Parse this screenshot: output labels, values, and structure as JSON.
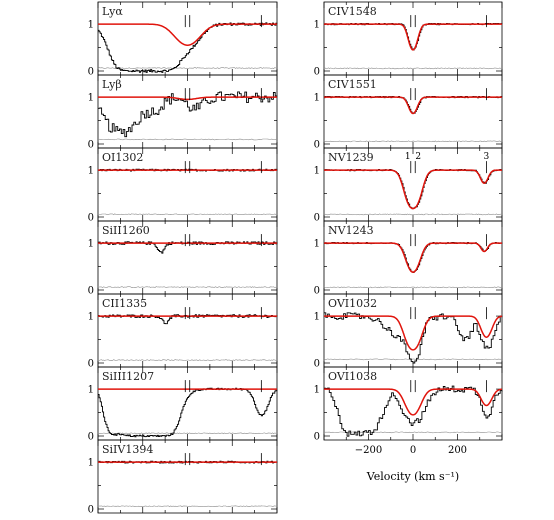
{
  "chart_data": {
    "type": "line",
    "xlabel": "Velocity (km s⁻¹)",
    "xlim": [
      -400,
      400
    ],
    "ylim": [
      0,
      1.3
    ],
    "xticks": [
      -200,
      0,
      200
    ],
    "yticks": [
      0,
      1
    ],
    "component_labels": [
      "1",
      "2",
      "3"
    ],
    "component_velocities": [
      -10,
      10,
      330
    ],
    "panels": [
      {
        "column": "left",
        "ion": "Lyα",
        "absorbers": [
          {
            "v": -190,
            "depth": 1.0,
            "width": 70
          },
          {
            "v": 0,
            "depth": 0.45,
            "width": 50
          }
        ],
        "model_absorbers": [
          {
            "v": 0,
            "depth": 0.45,
            "width": 50
          }
        ],
        "noise": 0.03
      },
      {
        "column": "left",
        "ion": "Lyβ",
        "absorbers": [
          {
            "v": -300,
            "depth": 0.75,
            "width": 60
          },
          {
            "v": -150,
            "depth": 0.25,
            "width": 35
          },
          {
            "v": 30,
            "depth": 0.25,
            "width": 35
          }
        ],
        "model_absorbers": [
          {
            "v": 0,
            "depth": 0.05,
            "width": 40
          }
        ],
        "noise": 0.12
      },
      {
        "column": "left",
        "ion": "OI1302",
        "absorbers": [],
        "model_absorbers": [],
        "noise": 0.02
      },
      {
        "column": "left",
        "ion": "SiII1260",
        "absorbers": [
          {
            "v": -120,
            "depth": 0.2,
            "width": 14
          }
        ],
        "model_absorbers": [],
        "noise": 0.03
      },
      {
        "column": "left",
        "ion": "CII1335",
        "absorbers": [
          {
            "v": -100,
            "depth": 0.15,
            "width": 14
          }
        ],
        "model_absorbers": [],
        "noise": 0.03
      },
      {
        "column": "left",
        "ion": "SiIII1207",
        "absorbers": [
          {
            "v": -330,
            "depth": 0.95,
            "width": 28
          },
          {
            "v": -175,
            "depth": 1.0,
            "width": 60
          },
          {
            "v": 330,
            "depth": 0.55,
            "width": 25
          }
        ],
        "model_absorbers": [],
        "noise": 0.02
      },
      {
        "column": "left",
        "ion": "SiIV1394",
        "absorbers": [],
        "model_absorbers": [],
        "noise": 0.02
      },
      {
        "column": "right",
        "ion": "CIV1548",
        "absorbers": [
          {
            "v": 0,
            "depth": 0.55,
            "width": 18
          }
        ],
        "model_absorbers": [
          {
            "v": 0,
            "depth": 0.55,
            "width": 18
          }
        ],
        "noise": 0.015
      },
      {
        "column": "right",
        "ion": "CIV1551",
        "absorbers": [
          {
            "v": 0,
            "depth": 0.35,
            "width": 18
          }
        ],
        "model_absorbers": [
          {
            "v": 0,
            "depth": 0.35,
            "width": 18
          }
        ],
        "noise": 0.015
      },
      {
        "column": "right",
        "ion": "NV1239",
        "absorbers": [
          {
            "v": 0,
            "depth": 0.82,
            "width": 28
          },
          {
            "v": 320,
            "depth": 0.28,
            "width": 16
          }
        ],
        "model_absorbers": [
          {
            "v": 0,
            "depth": 0.82,
            "width": 28
          },
          {
            "v": 320,
            "depth": 0.28,
            "width": 16
          }
        ],
        "noise": 0.015
      },
      {
        "column": "right",
        "ion": "NV1243",
        "absorbers": [
          {
            "v": 0,
            "depth": 0.62,
            "width": 26
          },
          {
            "v": 320,
            "depth": 0.18,
            "width": 14
          }
        ],
        "model_absorbers": [
          {
            "v": 0,
            "depth": 0.62,
            "width": 26
          },
          {
            "v": 320,
            "depth": 0.18,
            "width": 14
          }
        ],
        "noise": 0.015
      },
      {
        "column": "right",
        "ion": "OVI1032",
        "absorbers": [
          {
            "v": -50,
            "depth": 0.45,
            "width": 60
          },
          {
            "v": 0,
            "depth": 0.92,
            "width": 22
          },
          {
            "v": 230,
            "depth": 0.5,
            "width": 25
          },
          {
            "v": 330,
            "depth": 0.7,
            "width": 25
          }
        ],
        "model_absorbers": [
          {
            "v": 0,
            "depth": 0.72,
            "width": 30
          },
          {
            "v": 330,
            "depth": 0.45,
            "width": 22
          }
        ],
        "noise": 0.07
      },
      {
        "column": "right",
        "ion": "OVI1038",
        "absorbers": [
          {
            "v": -280,
            "depth": 0.95,
            "width": 35
          },
          {
            "v": -200,
            "depth": 0.9,
            "width": 40
          },
          {
            "v": 0,
            "depth": 0.72,
            "width": 40
          },
          {
            "v": 330,
            "depth": 0.55,
            "width": 22
          }
        ],
        "model_absorbers": [
          {
            "v": 0,
            "depth": 0.55,
            "width": 30
          },
          {
            "v": 330,
            "depth": 0.35,
            "width": 22
          }
        ],
        "noise": 0.07
      }
    ]
  }
}
